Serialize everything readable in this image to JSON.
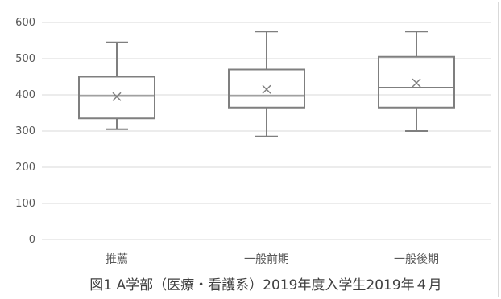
{
  "chart_data": {
    "type": "boxplot",
    "title": "",
    "caption": "図1 A学部（医療・看護系）2019年度入学生2019年４月",
    "xlabel": "",
    "ylabel": "",
    "ylim": [
      0,
      600
    ],
    "yticks": [
      0,
      100,
      200,
      300,
      400,
      500,
      600
    ],
    "ytick_labels": [
      "0",
      "100",
      "200",
      "300",
      "400",
      "500",
      "600"
    ],
    "grid": true,
    "legend": "none",
    "categories": [
      "推薦",
      "一般前期",
      "一般後期"
    ],
    "boxes": [
      {
        "category": "推薦",
        "min": 305,
        "q1": 335,
        "median": 397,
        "q3": 450,
        "max": 545,
        "mean": 395
      },
      {
        "category": "一般前期",
        "min": 285,
        "q1": 365,
        "median": 397,
        "q3": 470,
        "max": 575,
        "mean": 415
      },
      {
        "category": "一般後期",
        "min": 300,
        "q1": 365,
        "median": 420,
        "q3": 505,
        "max": 575,
        "mean": 433
      }
    ],
    "colors": {
      "box": "#7f7f7f",
      "grid": "#d9d9d9",
      "text": "#595959"
    }
  }
}
